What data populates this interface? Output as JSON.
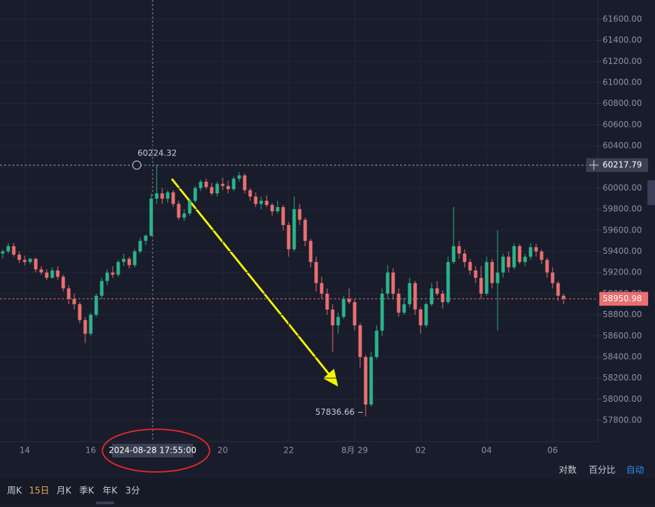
{
  "chart_data": {
    "type": "candlestick",
    "categories": [
      null,
      null,
      null,
      null,
      "14",
      null,
      null,
      null,
      null,
      null,
      null,
      null,
      null,
      null,
      null,
      null,
      "16",
      null,
      null,
      null,
      null,
      null,
      null,
      null,
      null,
      null,
      null,
      null,
      null,
      null,
      null,
      null,
      null,
      null,
      null,
      null,
      null,
      null,
      null,
      null,
      "20",
      null,
      null,
      null,
      null,
      null,
      null,
      null,
      null,
      null,
      null,
      null,
      "22",
      null,
      null,
      null,
      null,
      null,
      null,
      null,
      null,
      null,
      null,
      null,
      "8月 29",
      null,
      null,
      null,
      null,
      null,
      null,
      null,
      null,
      null,
      null,
      null,
      "02",
      null,
      null,
      null,
      null,
      null,
      null,
      null,
      null,
      null,
      null,
      null,
      "04",
      null,
      null,
      null,
      null,
      null,
      null,
      null,
      null,
      null,
      null,
      null,
      "06",
      null,
      null
    ],
    "values": [
      [
        59380,
        59420,
        59330,
        59400
      ],
      [
        59400,
        59480,
        59380,
        59450
      ],
      [
        59450,
        59480,
        59350,
        59370
      ],
      [
        59370,
        59400,
        59290,
        59320
      ],
      [
        59320,
        59360,
        59270,
        59300
      ],
      [
        59300,
        59340,
        59280,
        59330
      ],
      [
        59330,
        59340,
        59200,
        59230
      ],
      [
        59230,
        59260,
        59180,
        59200
      ],
      [
        59200,
        59230,
        59130,
        59150
      ],
      [
        59150,
        59250,
        59140,
        59220
      ],
      [
        59220,
        59260,
        59130,
        59160
      ],
      [
        59160,
        59180,
        59020,
        59050
      ],
      [
        59050,
        59080,
        58900,
        58950
      ],
      [
        58950,
        59000,
        58850,
        58900
      ],
      [
        58900,
        58920,
        58720,
        58750
      ],
      [
        58750,
        58780,
        58530,
        58620
      ],
      [
        58620,
        58820,
        58600,
        58800
      ],
      [
        58800,
        59000,
        58780,
        58980
      ],
      [
        58980,
        59150,
        58950,
        59120
      ],
      [
        59120,
        59230,
        59080,
        59200
      ],
      [
        59200,
        59260,
        59150,
        59180
      ],
      [
        59180,
        59320,
        59160,
        59300
      ],
      [
        59300,
        59380,
        59260,
        59330
      ],
      [
        59330,
        59350,
        59240,
        59270
      ],
      [
        59270,
        59420,
        59250,
        59400
      ],
      [
        59400,
        59530,
        59380,
        59500
      ],
      [
        59500,
        59560,
        59460,
        59550
      ],
      [
        59550,
        59950,
        59540,
        59900
      ],
      [
        59900,
        60224.32,
        59850,
        59950
      ],
      [
        59950,
        60000,
        59850,
        59900
      ],
      [
        59900,
        59980,
        59860,
        59960
      ],
      [
        59960,
        59980,
        59820,
        59850
      ],
      [
        59850,
        59880,
        59700,
        59720
      ],
      [
        59720,
        59800,
        59690,
        59760
      ],
      [
        59760,
        59900,
        59740,
        59880
      ],
      [
        59880,
        60020,
        59860,
        60000
      ],
      [
        60000,
        60080,
        59970,
        60060
      ],
      [
        60060,
        60090,
        59990,
        60010
      ],
      [
        60010,
        60050,
        59930,
        59950
      ],
      [
        59950,
        60060,
        59920,
        60040
      ],
      [
        60040,
        60100,
        59980,
        60020
      ],
      [
        60020,
        60070,
        59950,
        59990
      ],
      [
        59990,
        60110,
        59970,
        60090
      ],
      [
        60090,
        60150,
        60060,
        60120
      ],
      [
        60120,
        60140,
        59950,
        59980
      ],
      [
        59980,
        60000,
        59880,
        59920
      ],
      [
        59920,
        59960,
        59820,
        59850
      ],
      [
        59850,
        59920,
        59800,
        59880
      ],
      [
        59880,
        59930,
        59820,
        59840
      ],
      [
        59840,
        59860,
        59740,
        59780
      ],
      [
        59780,
        59880,
        59760,
        59820
      ],
      [
        59820,
        59840,
        59600,
        59650
      ],
      [
        59650,
        59680,
        59350,
        59420
      ],
      [
        59420,
        59920,
        59400,
        59800
      ],
      [
        59800,
        59850,
        59650,
        59700
      ],
      [
        59700,
        59720,
        59450,
        59500
      ],
      [
        59500,
        59520,
        59250,
        59300
      ],
      [
        59300,
        59350,
        59020,
        59100
      ],
      [
        59100,
        59160,
        58950,
        59000
      ],
      [
        59000,
        59050,
        58800,
        58850
      ],
      [
        58850,
        58900,
        58450,
        58700
      ],
      [
        58700,
        58820,
        58620,
        58780
      ],
      [
        58780,
        58980,
        58760,
        58950
      ],
      [
        58950,
        59050,
        58900,
        58920
      ],
      [
        58920,
        58950,
        58650,
        58700
      ],
      [
        58700,
        58720,
        58300,
        58400
      ],
      [
        58400,
        58420,
        57836.66,
        57950
      ],
      [
        57950,
        58450,
        57930,
        58400
      ],
      [
        58400,
        58700,
        58380,
        58650
      ],
      [
        58650,
        59050,
        58600,
        59000
      ],
      [
        59000,
        59270,
        58950,
        59200
      ],
      [
        59200,
        59240,
        58950,
        59000
      ],
      [
        59000,
        59050,
        58780,
        58820
      ],
      [
        58820,
        58960,
        58800,
        58900
      ],
      [
        58900,
        59150,
        58870,
        59100
      ],
      [
        59100,
        59120,
        58800,
        58850
      ],
      [
        58850,
        58870,
        58620,
        58700
      ],
      [
        58700,
        58920,
        58680,
        58900
      ],
      [
        58900,
        59100,
        58880,
        59050
      ],
      [
        59050,
        59120,
        58980,
        59000
      ],
      [
        59000,
        59030,
        58860,
        58920
      ],
      [
        58920,
        59350,
        58900,
        59300
      ],
      [
        59300,
        59820,
        59280,
        59450
      ],
      [
        59450,
        59500,
        59330,
        59380
      ],
      [
        59380,
        59420,
        59250,
        59300
      ],
      [
        59300,
        59330,
        59180,
        59220
      ],
      [
        59220,
        59260,
        59100,
        59150
      ],
      [
        59150,
        59260,
        58950,
        59000
      ],
      [
        59000,
        59350,
        58980,
        59300
      ],
      [
        59300,
        59330,
        59050,
        59100
      ],
      [
        59100,
        59600,
        58650,
        59200
      ],
      [
        59200,
        59380,
        59150,
        59350
      ],
      [
        59350,
        59400,
        59200,
        59250
      ],
      [
        59250,
        59480,
        59230,
        59450
      ],
      [
        59450,
        59470,
        59280,
        59300
      ],
      [
        59300,
        59380,
        59260,
        59350
      ],
      [
        59350,
        59480,
        59320,
        59440
      ],
      [
        59440,
        59470,
        59350,
        59400
      ],
      [
        59400,
        59420,
        59280,
        59320
      ],
      [
        59320,
        59340,
        59150,
        59200
      ],
      [
        59200,
        59250,
        59050,
        59100
      ],
      [
        59100,
        59120,
        58930,
        58980
      ],
      [
        58980,
        59000,
        58900,
        58950.98
      ]
    ],
    "up_color": "#2bb38a",
    "down_color": "#ea6f70",
    "ylim": [
      57598,
      61782
    ],
    "yticks": [
      {
        "value": 57800,
        "label": "57800.00"
      },
      {
        "value": 58000,
        "label": "58000.00"
      },
      {
        "value": 58200,
        "label": "58200.00"
      },
      {
        "value": 58400,
        "label": "58400.00"
      },
      {
        "value": 58600,
        "label": "58600.00"
      },
      {
        "value": 58800,
        "label": "58800.00"
      },
      {
        "value": 59000,
        "label": "59000.00"
      },
      {
        "value": 59200,
        "label": "59200.00"
      },
      {
        "value": 59400,
        "label": "59400.00"
      },
      {
        "value": 59600,
        "label": "59600.00"
      },
      {
        "value": 59800,
        "label": "59800.00"
      },
      {
        "value": 60000,
        "label": "60000.00"
      },
      {
        "value": 60200,
        "label": "60200.00"
      },
      {
        "value": 60400,
        "label": "60400.00"
      },
      {
        "value": 60600,
        "label": "60600.00"
      },
      {
        "value": 60800,
        "label": "60800.00"
      },
      {
        "value": 61000,
        "label": "61000.00"
      },
      {
        "value": 61200,
        "label": "61200.00"
      },
      {
        "value": 61400,
        "label": "61400.00"
      },
      {
        "value": 61600,
        "label": "61600.00"
      }
    ],
    "grid": true,
    "crosshair_price": 60217.79,
    "crosshair_time": "2024-08-28 17:55:00",
    "scale_options": [
      "对数",
      "百分比",
      "自动"
    ],
    "toolbar": [
      "周K",
      "15日",
      "月K",
      "季K",
      "年K",
      "3分"
    ]
  }
}
